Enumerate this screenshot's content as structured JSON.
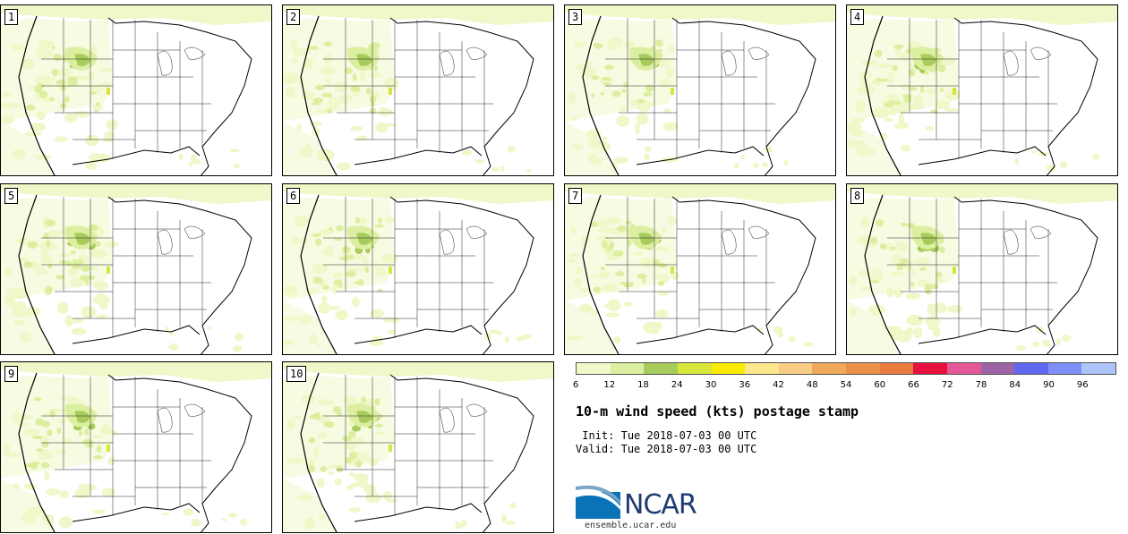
{
  "figure": {
    "title": "10-m wind speed (kts) postage stamp",
    "init_label": " Init:",
    "init_value": "Tue 2018-07-03 00 UTC",
    "valid_label": "Valid:",
    "valid_value": "Tue 2018-07-03 00 UTC",
    "logo_text": "NCAR",
    "logo_url": "ensemble.ucar.edu"
  },
  "members": [
    "1",
    "2",
    "3",
    "4",
    "5",
    "6",
    "7",
    "8",
    "9",
    "10"
  ],
  "colorbar": {
    "ticks": [
      "6",
      "12",
      "18",
      "24",
      "30",
      "36",
      "42",
      "48",
      "54",
      "60",
      "66",
      "72",
      "78",
      "84",
      "90",
      "96"
    ],
    "colors": [
      "#f0f7c8",
      "#dcefa0",
      "#a8cc5c",
      "#d8e63c",
      "#f8ea00",
      "#fce88c",
      "#f8cc84",
      "#f0a85c",
      "#ec9048",
      "#e87c40",
      "#e8103c",
      "#e45898",
      "#9c64a4",
      "#6068f0",
      "#7c90f8",
      "#b0c4fc"
    ]
  }
}
